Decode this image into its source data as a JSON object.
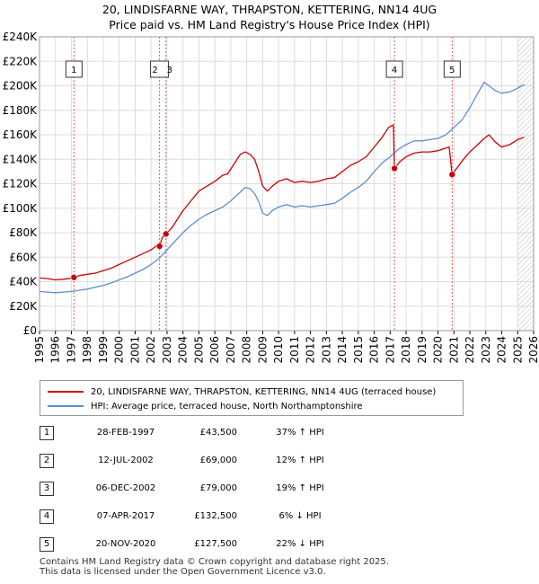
{
  "header": {
    "title_line1": "20, LINDISFARNE WAY, THRAPSTON, KETTERING, NN14 4UG",
    "title_line2": "Price paid vs. HM Land Registry's House Price Index (HPI)"
  },
  "colors": {
    "property": "#cc0000",
    "hpi": "#5b8fd0",
    "marker_line": "#e06060",
    "future_hatch": "#bbbbbb",
    "grid": "#dddddd"
  },
  "legend": {
    "property_label": "20, LINDISFARNE WAY, THRAPSTON, KETTERING, NN14 4UG (terraced house)",
    "hpi_label": "HPI: Average price, terraced house, North Northamptonshire"
  },
  "sales": [
    {
      "num": "1",
      "date": "28-FEB-1997",
      "price": "£43,500",
      "hpi": "37% ↑ HPI",
      "t": 1997.16,
      "value": 43500
    },
    {
      "num": "2",
      "date": "12-JUL-2002",
      "price": "£69,000",
      "hpi": "12% ↑ HPI",
      "t": 2002.53,
      "value": 69000
    },
    {
      "num": "3",
      "date": "06-DEC-2002",
      "price": "£79,000",
      "hpi": "19% ↑ HPI",
      "t": 2002.93,
      "value": 79000
    },
    {
      "num": "4",
      "date": "07-APR-2017",
      "price": "£132,500",
      "hpi": "6% ↓ HPI",
      "t": 2017.27,
      "value": 132500
    },
    {
      "num": "5",
      "date": "20-NOV-2020",
      "price": "£127,500",
      "hpi": "22% ↓ HPI",
      "t": 2020.89,
      "value": 127500
    }
  ],
  "footer": {
    "line1": "Contains HM Land Registry data © Crown copyright and database right 2025.",
    "line2": "This data is licensed under the Open Government Licence v3.0."
  },
  "chart_data": {
    "type": "line",
    "title": "20, LINDISFARNE WAY, THRAPSTON, KETTERING, NN14 4UG — Price paid vs. HM Land Registry's House Price Index (HPI)",
    "xlim": [
      1995,
      2026
    ],
    "ylim": [
      0,
      240000
    ],
    "x_ticks": [
      1995,
      1996,
      1997,
      1998,
      1999,
      2000,
      2001,
      2002,
      2003,
      2004,
      2005,
      2006,
      2007,
      2008,
      2009,
      2010,
      2011,
      2012,
      2013,
      2014,
      2015,
      2016,
      2017,
      2018,
      2019,
      2020,
      2021,
      2022,
      2023,
      2024,
      2025,
      2026
    ],
    "y_ticks": [
      {
        "value": 0,
        "label": "£0"
      },
      {
        "value": 20000,
        "label": "£20K"
      },
      {
        "value": 40000,
        "label": "£40K"
      },
      {
        "value": 60000,
        "label": "£60K"
      },
      {
        "value": 80000,
        "label": "£80K"
      },
      {
        "value": 100000,
        "label": "£100K"
      },
      {
        "value": 120000,
        "label": "£120K"
      },
      {
        "value": 140000,
        "label": "£140K"
      },
      {
        "value": 160000,
        "label": "£160K"
      },
      {
        "value": 180000,
        "label": "£180K"
      },
      {
        "value": 200000,
        "label": "£200K"
      },
      {
        "value": 220000,
        "label": "£220K"
      },
      {
        "value": 240000,
        "label": "£240K"
      }
    ],
    "future_from": 2025.0,
    "series": [
      {
        "name": "20, LINDISFARNE WAY, THRAPSTON, KETTERING, NN14 4UG (terraced house)",
        "points": [
          [
            1995.0,
            43000
          ],
          [
            1995.5,
            42500
          ],
          [
            1996.0,
            41500
          ],
          [
            1996.5,
            42000
          ],
          [
            1997.1,
            43000
          ],
          [
            1997.16,
            43500
          ],
          [
            1997.5,
            45000
          ],
          [
            1998.0,
            46000
          ],
          [
            1998.5,
            47000
          ],
          [
            1999.0,
            49000
          ],
          [
            1999.5,
            51000
          ],
          [
            2000.0,
            54000
          ],
          [
            2000.5,
            57000
          ],
          [
            2001.0,
            60000
          ],
          [
            2001.5,
            63000
          ],
          [
            2002.0,
            66000
          ],
          [
            2002.4,
            70000
          ],
          [
            2002.53,
            69000
          ],
          [
            2002.7,
            76000
          ],
          [
            2002.93,
            79000
          ],
          [
            2003.3,
            84000
          ],
          [
            2003.7,
            92000
          ],
          [
            2004.0,
            98000
          ],
          [
            2004.5,
            106000
          ],
          [
            2005.0,
            114000
          ],
          [
            2005.5,
            118000
          ],
          [
            2006.0,
            122000
          ],
          [
            2006.5,
            127000
          ],
          [
            2006.8,
            128000
          ],
          [
            2007.0,
            132000
          ],
          [
            2007.3,
            138000
          ],
          [
            2007.6,
            144000
          ],
          [
            2007.9,
            146000
          ],
          [
            2008.2,
            144000
          ],
          [
            2008.5,
            140000
          ],
          [
            2008.8,
            128000
          ],
          [
            2009.0,
            118000
          ],
          [
            2009.3,
            114000
          ],
          [
            2009.6,
            118000
          ],
          [
            2010.0,
            122000
          ],
          [
            2010.5,
            124000
          ],
          [
            2011.0,
            121000
          ],
          [
            2011.5,
            122000
          ],
          [
            2012.0,
            121000
          ],
          [
            2012.5,
            122000
          ],
          [
            2013.0,
            124000
          ],
          [
            2013.5,
            125000
          ],
          [
            2014.0,
            130000
          ],
          [
            2014.5,
            135000
          ],
          [
            2015.0,
            138000
          ],
          [
            2015.5,
            142000
          ],
          [
            2016.0,
            150000
          ],
          [
            2016.5,
            158000
          ],
          [
            2016.9,
            166000
          ],
          [
            2017.2,
            168000
          ],
          [
            2017.27,
            132500
          ],
          [
            2017.6,
            138000
          ],
          [
            2018.0,
            142000
          ],
          [
            2018.5,
            145000
          ],
          [
            2019.0,
            146000
          ],
          [
            2019.5,
            146000
          ],
          [
            2020.0,
            147000
          ],
          [
            2020.7,
            150000
          ],
          [
            2020.89,
            127500
          ],
          [
            2021.2,
            133000
          ],
          [
            2021.6,
            140000
          ],
          [
            2022.0,
            146000
          ],
          [
            2022.5,
            152000
          ],
          [
            2022.9,
            157000
          ],
          [
            2023.2,
            160000
          ],
          [
            2023.6,
            154000
          ],
          [
            2024.0,
            150000
          ],
          [
            2024.5,
            152000
          ],
          [
            2025.0,
            156000
          ],
          [
            2025.4,
            158000
          ]
        ]
      },
      {
        "name": "HPI: Average price, terraced house, North Northamptonshire",
        "points": [
          [
            1995.0,
            32000
          ],
          [
            1995.5,
            31500
          ],
          [
            1996.0,
            31000
          ],
          [
            1996.5,
            31500
          ],
          [
            1997.0,
            32000
          ],
          [
            1997.5,
            33000
          ],
          [
            1998.0,
            34000
          ],
          [
            1998.5,
            35500
          ],
          [
            1999.0,
            37000
          ],
          [
            1999.5,
            39000
          ],
          [
            2000.0,
            41500
          ],
          [
            2000.5,
            44000
          ],
          [
            2001.0,
            47000
          ],
          [
            2001.5,
            50000
          ],
          [
            2002.0,
            54000
          ],
          [
            2002.5,
            59000
          ],
          [
            2003.0,
            66000
          ],
          [
            2003.5,
            73000
          ],
          [
            2004.0,
            80000
          ],
          [
            2004.5,
            86000
          ],
          [
            2005.0,
            91000
          ],
          [
            2005.5,
            95000
          ],
          [
            2006.0,
            98000
          ],
          [
            2006.5,
            101000
          ],
          [
            2007.0,
            106000
          ],
          [
            2007.5,
            112000
          ],
          [
            2007.9,
            117000
          ],
          [
            2008.2,
            116000
          ],
          [
            2008.5,
            112000
          ],
          [
            2008.8,
            104000
          ],
          [
            2009.0,
            96000
          ],
          [
            2009.3,
            94000
          ],
          [
            2009.6,
            98000
          ],
          [
            2010.0,
            101000
          ],
          [
            2010.5,
            103000
          ],
          [
            2011.0,
            101000
          ],
          [
            2011.5,
            102000
          ],
          [
            2012.0,
            101000
          ],
          [
            2012.5,
            102000
          ],
          [
            2013.0,
            103000
          ],
          [
            2013.5,
            104000
          ],
          [
            2014.0,
            108000
          ],
          [
            2014.5,
            113000
          ],
          [
            2015.0,
            117000
          ],
          [
            2015.5,
            122000
          ],
          [
            2016.0,
            130000
          ],
          [
            2016.5,
            137000
          ],
          [
            2017.0,
            142000
          ],
          [
            2017.5,
            148000
          ],
          [
            2018.0,
            152000
          ],
          [
            2018.5,
            155000
          ],
          [
            2019.0,
            155000
          ],
          [
            2019.5,
            156000
          ],
          [
            2020.0,
            157000
          ],
          [
            2020.5,
            160000
          ],
          [
            2021.0,
            166000
          ],
          [
            2021.5,
            172000
          ],
          [
            2022.0,
            182000
          ],
          [
            2022.5,
            194000
          ],
          [
            2022.9,
            203000
          ],
          [
            2023.2,
            200000
          ],
          [
            2023.6,
            196000
          ],
          [
            2024.0,
            194000
          ],
          [
            2024.5,
            195000
          ],
          [
            2025.0,
            198000
          ],
          [
            2025.4,
            201000
          ]
        ]
      }
    ]
  }
}
